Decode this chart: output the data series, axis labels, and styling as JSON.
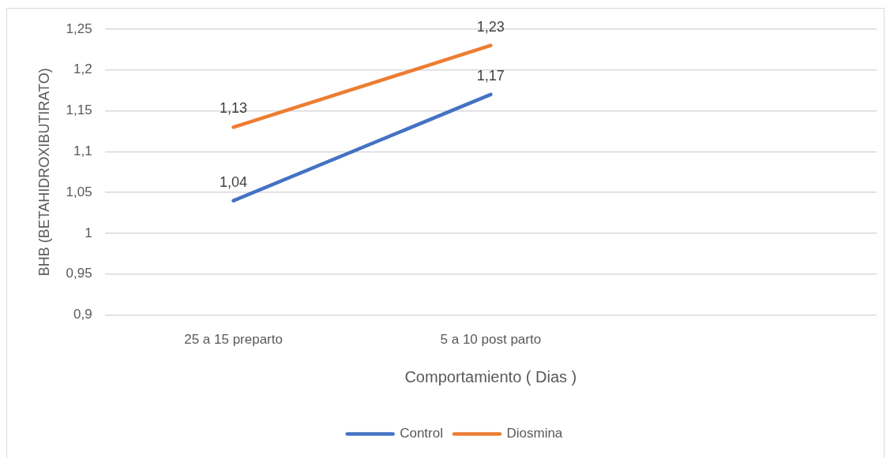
{
  "chart_data": {
    "type": "line",
    "xlabel": "Comportamiento ( Dias )",
    "ylabel": "BHB (BETAHIDROXIBUTIRATO)",
    "categories": [
      "25 a 15 preparto",
      "5 a 10 post parto",
      null
    ],
    "series": [
      {
        "name": "Control",
        "color": "#4472c4",
        "values": [
          1.04,
          1.17,
          null
        ],
        "value_labels": [
          "1,04",
          "1,17",
          null
        ]
      },
      {
        "name": "Diosmina",
        "color": "#ed7d31",
        "values": [
          1.13,
          1.23,
          null
        ],
        "value_labels": [
          "1,13",
          "1,23",
          null
        ]
      }
    ],
    "ylim": [
      0.9,
      1.25
    ],
    "yticks": [
      {
        "value": 0.9,
        "label": "0,9"
      },
      {
        "value": 0.95,
        "label": "0,95"
      },
      {
        "value": 1,
        "label": "1"
      },
      {
        "value": 1.05,
        "label": "1,05"
      },
      {
        "value": 1.1,
        "label": "1,1"
      },
      {
        "value": 1.15,
        "label": "1,15"
      },
      {
        "value": 1.2,
        "label": "1,2"
      },
      {
        "value": 1.25,
        "label": "1,25"
      }
    ],
    "grid": "y",
    "legend": "bottom",
    "marker": "none",
    "line_style": "solid"
  }
}
